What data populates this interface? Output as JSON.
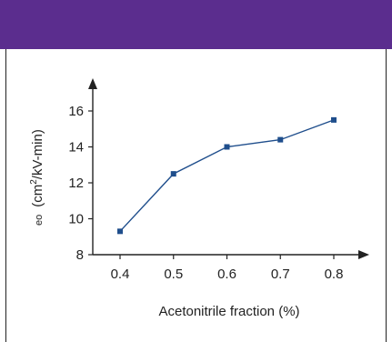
{
  "theme": {
    "header_color": "#5b2d8e",
    "series_color": "#1f4e8c",
    "axis_color": "#222222"
  },
  "chart_data": {
    "type": "line",
    "xlabel": "Acetonitrile fraction (%)",
    "ylabel_prefix": "eo",
    "ylabel_main": "(cm",
    "ylabel_sup": "2",
    "ylabel_rest": "/kV-min)",
    "x_ticks": [
      "0.4",
      "0.5",
      "0.6",
      "0.7",
      "0.8"
    ],
    "y_ticks": [
      "8",
      "10",
      "12",
      "14",
      "16"
    ],
    "xlim": [
      0.3,
      0.9
    ],
    "ylim": [
      8,
      17.3
    ],
    "grid": false,
    "series": [
      {
        "x": [
          0.4,
          0.5,
          0.6,
          0.7,
          0.8
        ],
        "values": [
          9.3,
          12.5,
          14.0,
          14.4,
          15.5
        ]
      }
    ]
  }
}
